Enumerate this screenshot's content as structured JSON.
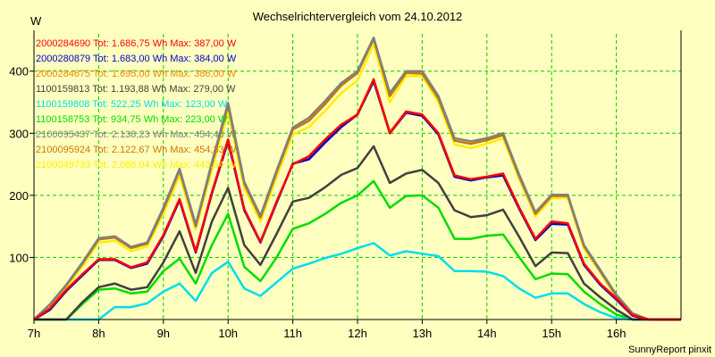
{
  "chart_data": {
    "type": "line",
    "title": "Wechselrichtervergleich vom 24.10.2012",
    "ylabel": "W",
    "xlabel": "",
    "footer": "SunnyReport pinxit",
    "x_ticks": [
      "7h",
      "8h",
      "9h",
      "10h",
      "11h",
      "12h",
      "13h",
      "14h",
      "15h",
      "16h"
    ],
    "y_ticks": [
      "100",
      "200",
      "300",
      "400"
    ],
    "xlim": [
      7,
      17
    ],
    "ylim": [
      0,
      460
    ],
    "grid": true,
    "legend_position": "top-left",
    "x": [
      7,
      7.25,
      7.5,
      7.75,
      8,
      8.25,
      8.5,
      8.75,
      9,
      9.25,
      9.5,
      9.75,
      10,
      10.25,
      10.5,
      10.75,
      11,
      11.25,
      11.5,
      11.75,
      12,
      12.25,
      12.5,
      12.75,
      13,
      13.25,
      13.5,
      13.75,
      14,
      14.25,
      14.5,
      14.75,
      15,
      15.25,
      15.5,
      15.75,
      16,
      16.25,
      16.5,
      16.75,
      17
    ],
    "series": [
      {
        "name": "2000284690 Tot: 1.686,75 Wh Max: 387,00 W",
        "color": "#ff0000",
        "values": [
          0,
          18,
          48,
          73,
          97,
          97,
          84,
          92,
          136,
          194,
          110,
          205,
          290,
          178,
          125,
          190,
          250,
          263,
          290,
          314,
          330,
          387,
          300,
          335,
          330,
          300,
          232,
          226,
          230,
          235,
          180,
          130,
          158,
          155,
          90,
          58,
          34,
          7,
          0,
          0,
          0
        ]
      },
      {
        "name": "2000280879 Tot: 1.683,00 Wh Max: 384,00 W",
        "color": "#0000cc",
        "values": [
          0,
          16,
          46,
          71,
          96,
          96,
          83,
          90,
          134,
          192,
          108,
          203,
          287,
          176,
          124,
          188,
          251,
          258,
          285,
          310,
          330,
          384,
          300,
          333,
          328,
          298,
          230,
          224,
          229,
          232,
          178,
          128,
          154,
          153,
          88,
          56,
          32,
          6,
          0,
          0,
          0
        ]
      },
      {
        "name": "2000284675 Tot: 1.695,00 Wh Max: 386,00 W",
        "color": "#ee8800",
        "values": [
          0,
          17,
          47,
          72,
          97,
          97,
          84,
          91,
          135,
          193,
          109,
          204,
          288,
          177,
          124,
          189,
          251,
          260,
          288,
          312,
          331,
          386,
          302,
          335,
          330,
          300,
          232,
          226,
          230,
          234,
          180,
          130,
          156,
          154,
          89,
          57,
          33,
          7,
          0,
          0,
          0
        ]
      },
      {
        "name": "1100159813 Tot: 1.193,88 Wh Max: 279,00 W",
        "color": "#404040",
        "values": [
          0,
          0,
          0,
          28,
          52,
          58,
          48,
          52,
          92,
          142,
          75,
          158,
          212,
          120,
          88,
          138,
          190,
          196,
          213,
          233,
          244,
          279,
          220,
          235,
          241,
          220,
          176,
          165,
          168,
          177,
          133,
          86,
          108,
          107,
          58,
          36,
          16,
          0,
          0,
          0,
          0
        ]
      },
      {
        "name": "1100159808 Tot: 522,25 Wh Max: 123,00 W",
        "color": "#00ddee",
        "values": [
          0,
          0,
          0,
          0,
          0,
          20,
          20,
          26,
          45,
          58,
          30,
          75,
          93,
          50,
          38,
          60,
          82,
          90,
          99,
          106,
          115,
          123,
          103,
          110,
          106,
          102,
          78,
          78,
          77,
          70,
          50,
          35,
          42,
          42,
          25,
          12,
          2,
          0,
          0,
          0,
          0
        ]
      },
      {
        "name": "1100158753 Tot: 934,75 Wh Max: 223,00 W",
        "color": "#00dd00",
        "values": [
          0,
          0,
          0,
          25,
          48,
          50,
          42,
          45,
          78,
          98,
          58,
          120,
          170,
          85,
          62,
          100,
          146,
          155,
          170,
          188,
          200,
          223,
          180,
          199,
          200,
          180,
          130,
          130,
          135,
          137,
          100,
          65,
          74,
          73,
          45,
          25,
          8,
          0,
          0,
          0,
          0
        ]
      },
      {
        "name": "2100095437 Tot: 2.138,23 Wh Max: 454,48 W",
        "color": "#808080",
        "values": [
          0,
          25,
          56,
          92,
          131,
          134,
          117,
          124,
          180,
          243,
          153,
          253,
          349,
          222,
          167,
          240,
          309,
          325,
          352,
          381,
          400,
          454,
          365,
          400,
          400,
          360,
          292,
          287,
          292,
          300,
          233,
          173,
          201,
          201,
          120,
          80,
          40,
          10,
          0,
          0,
          0
        ]
      },
      {
        "name": "2100095924 Tot: 2.122,67 Wh Max: 454,33 W",
        "color": "#c87800",
        "values": [
          0,
          24,
          55,
          90,
          129,
          132,
          115,
          122,
          177,
          240,
          150,
          250,
          345,
          219,
          164,
          237,
          306,
          320,
          347,
          377,
          397,
          452,
          360,
          397,
          396,
          356,
          288,
          283,
          289,
          297,
          230,
          170,
          199,
          199,
          118,
          78,
          38,
          9,
          0,
          0,
          0
        ]
      },
      {
        "name": "2100049733 Tot: 2.088,04 Wh Max: 443,54 W",
        "color": "#ffee00",
        "values": [
          0,
          22,
          52,
          86,
          124,
          127,
          110,
          118,
          170,
          232,
          145,
          242,
          334,
          212,
          158,
          229,
          298,
          310,
          336,
          365,
          385,
          443,
          350,
          392,
          392,
          350,
          282,
          276,
          283,
          292,
          226,
          166,
          195,
          196,
          114,
          76,
          36,
          8,
          0,
          0,
          0
        ]
      }
    ]
  }
}
